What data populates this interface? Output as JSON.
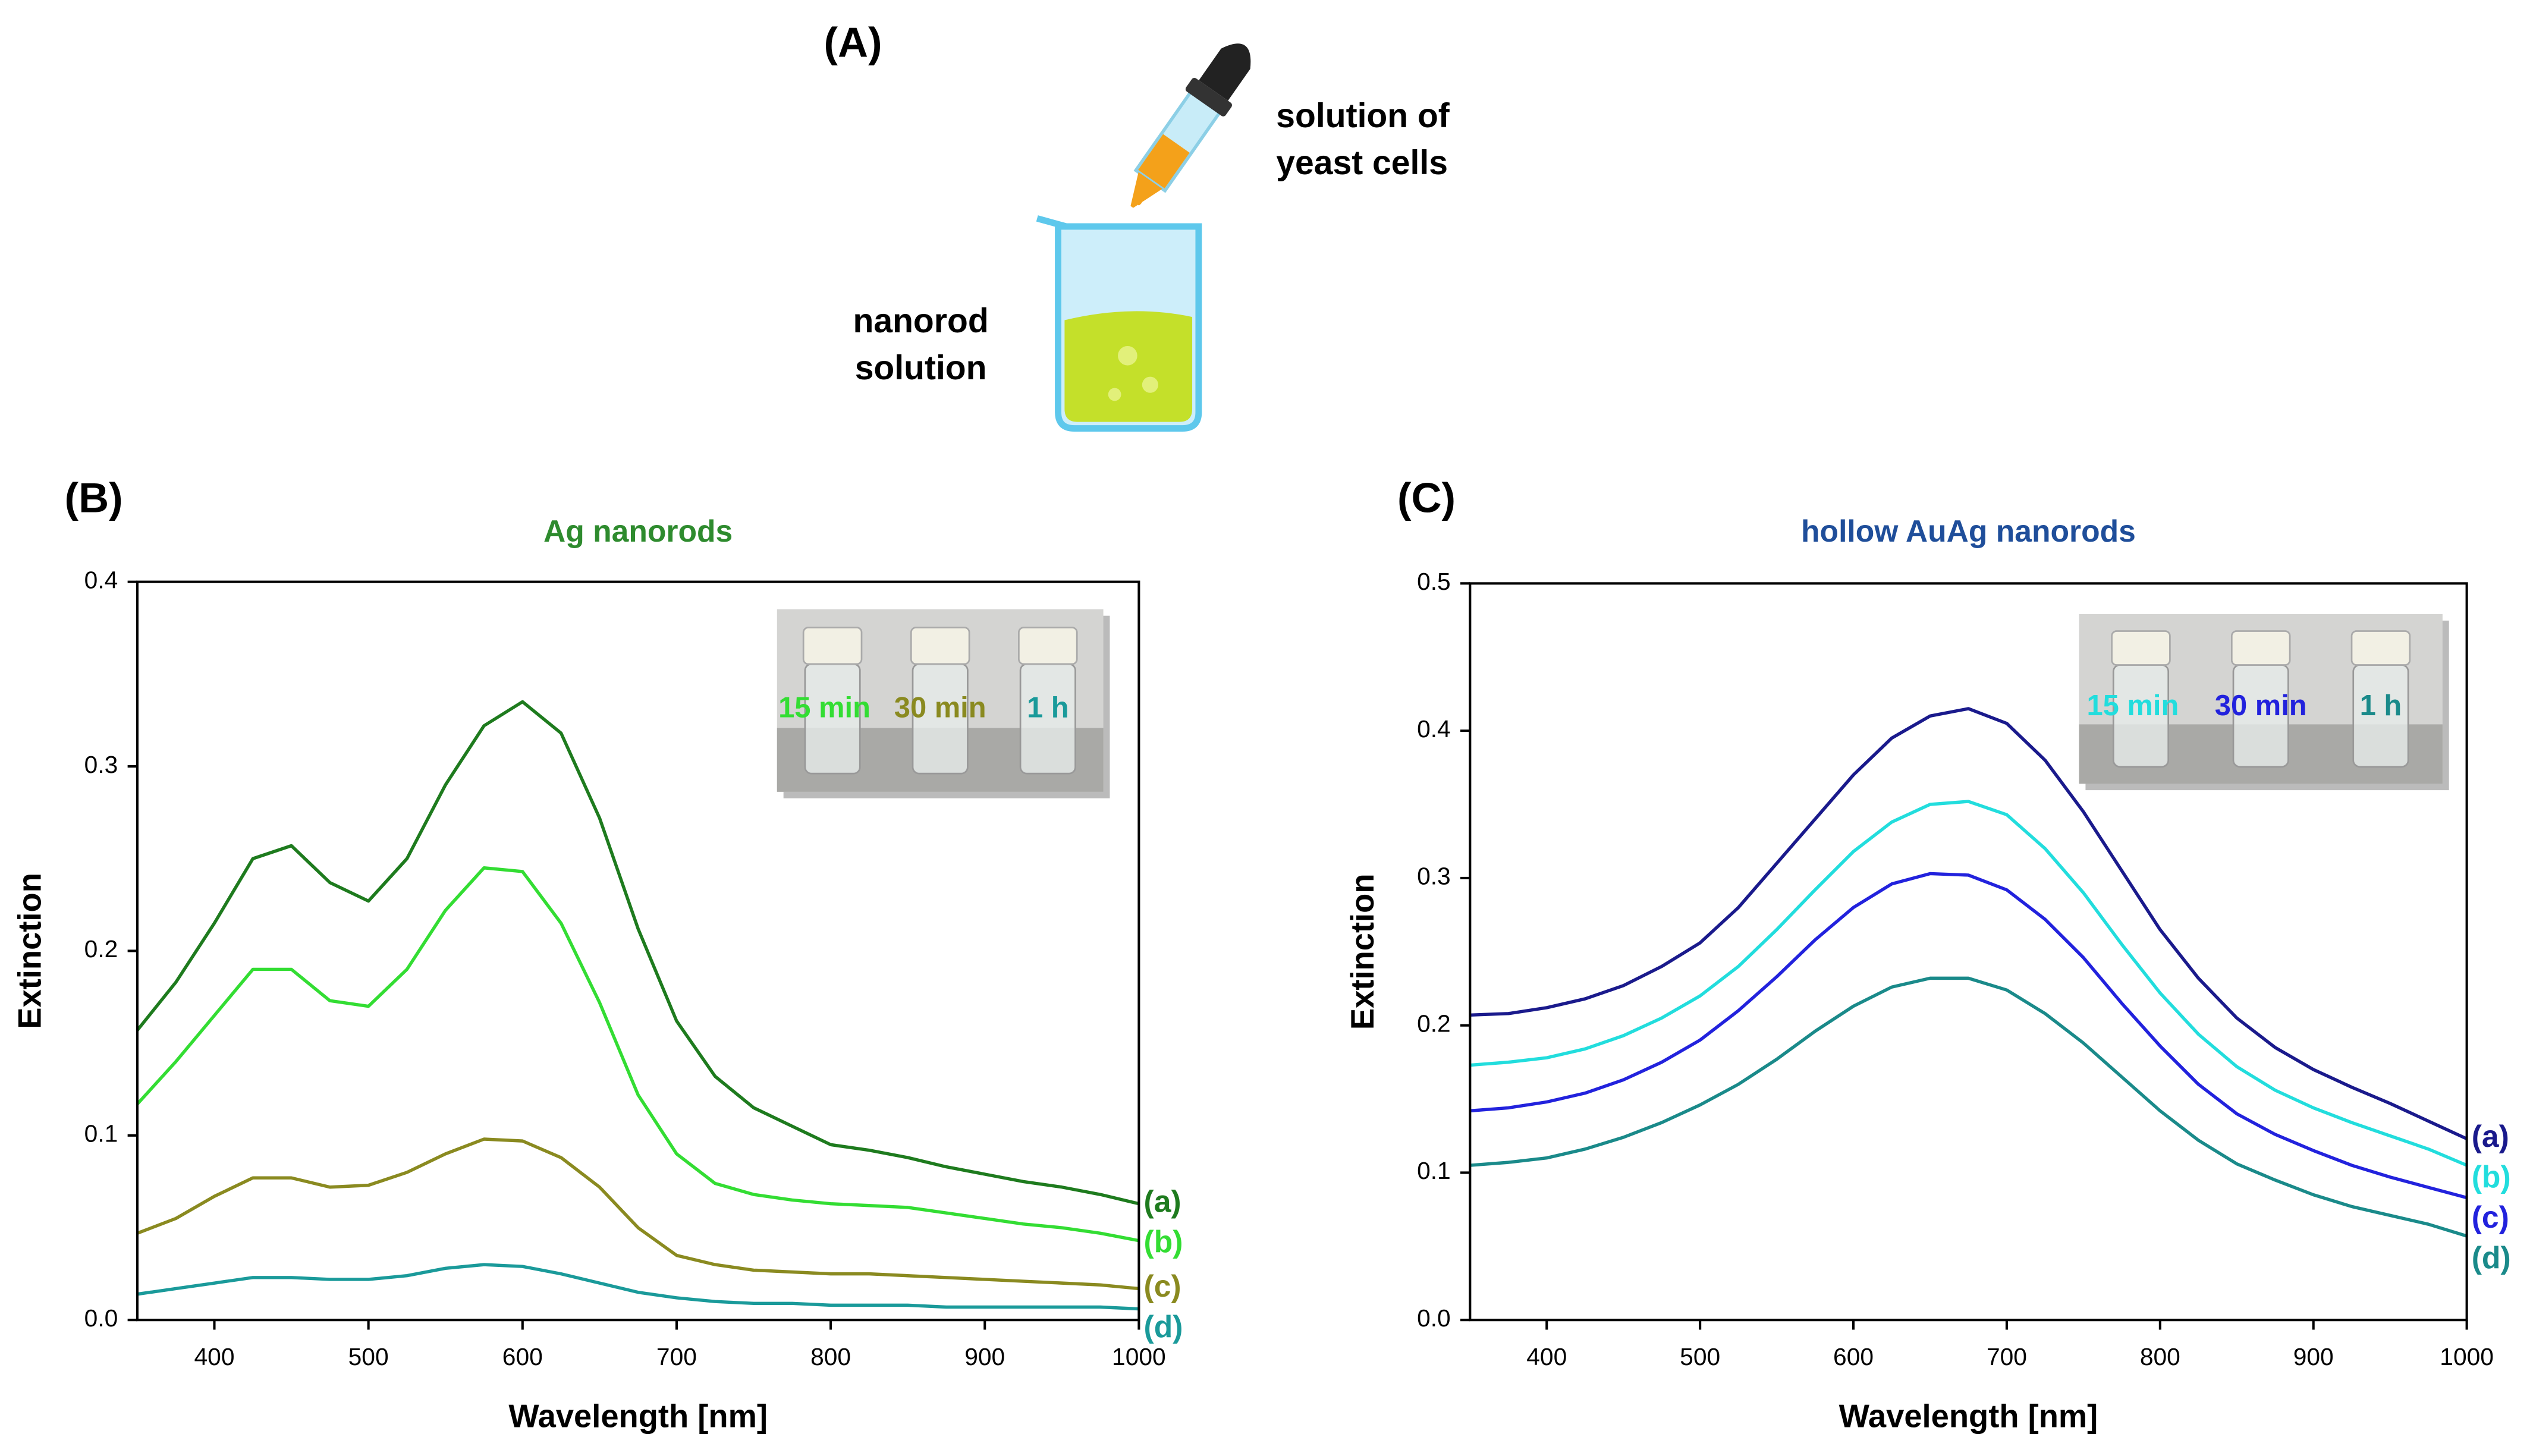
{
  "panel_a": {
    "label": "(A)",
    "dropper_label": [
      "solution of",
      "yeast cells"
    ],
    "beaker_label": [
      "nanorod",
      "solution"
    ]
  },
  "chart_data": [
    {
      "type": "line",
      "panel_label": "(B)",
      "title": "Ag nanorods",
      "title_color": "#2e8b2e",
      "xlabel": "Wavelength [nm]",
      "ylabel": "Extinction",
      "x": [
        350,
        375,
        400,
        425,
        450,
        475,
        500,
        525,
        550,
        575,
        600,
        625,
        650,
        675,
        700,
        725,
        750,
        775,
        800,
        825,
        850,
        875,
        900,
        925,
        950,
        975,
        1000
      ],
      "series": [
        {
          "name": "(a)",
          "color": "#1e7b1e",
          "values": [
            0.157,
            0.183,
            0.215,
            0.25,
            0.257,
            0.237,
            0.227,
            0.25,
            0.29,
            0.322,
            0.335,
            0.318,
            0.272,
            0.212,
            0.162,
            0.132,
            0.115,
            0.105,
            0.095,
            0.092,
            0.088,
            0.083,
            0.079,
            0.075,
            0.072,
            0.068,
            0.063
          ]
        },
        {
          "name": "(b)",
          "color": "#33dd33",
          "values": [
            0.117,
            0.14,
            0.165,
            0.19,
            0.19,
            0.173,
            0.17,
            0.19,
            0.222,
            0.245,
            0.243,
            0.215,
            0.172,
            0.122,
            0.09,
            0.074,
            0.068,
            0.065,
            0.063,
            0.062,
            0.061,
            0.058,
            0.055,
            0.052,
            0.05,
            0.047,
            0.043
          ]
        },
        {
          "name": "(c)",
          "color": "#8a8a20",
          "values": [
            0.047,
            0.055,
            0.067,
            0.077,
            0.077,
            0.072,
            0.073,
            0.08,
            0.09,
            0.098,
            0.097,
            0.088,
            0.072,
            0.05,
            0.035,
            0.03,
            0.027,
            0.026,
            0.025,
            0.025,
            0.024,
            0.023,
            0.022,
            0.021,
            0.02,
            0.019,
            0.017
          ]
        },
        {
          "name": "(d)",
          "color": "#1a9a9a",
          "values": [
            0.014,
            0.017,
            0.02,
            0.023,
            0.023,
            0.022,
            0.022,
            0.024,
            0.028,
            0.03,
            0.029,
            0.025,
            0.02,
            0.015,
            0.012,
            0.01,
            0.009,
            0.009,
            0.008,
            0.008,
            0.008,
            0.007,
            0.007,
            0.007,
            0.007,
            0.007,
            0.006
          ]
        }
      ],
      "xlim": [
        350,
        1000
      ],
      "xticks": [
        400,
        500,
        600,
        700,
        800,
        900,
        1000
      ],
      "ylim": [
        0,
        0.4
      ],
      "yticks": [
        {
          "value": 0,
          "label": "0.0"
        },
        0.1,
        0.2,
        0.3,
        0.4
      ],
      "inset_labels": [
        "15 min",
        "30 min",
        "1 h"
      ]
    },
    {
      "type": "line",
      "panel_label": "(C)",
      "title": "hollow AuAg nanorods",
      "title_color": "#1f4e9a",
      "xlabel": "Wavelength [nm]",
      "ylabel": "Extinction",
      "x": [
        350,
        375,
        400,
        425,
        450,
        475,
        500,
        525,
        550,
        575,
        600,
        625,
        650,
        675,
        700,
        725,
        750,
        775,
        800,
        825,
        850,
        875,
        900,
        925,
        950,
        975,
        1000
      ],
      "series": [
        {
          "name": "(a)",
          "color": "#1a1a8c",
          "values": [
            0.207,
            0.208,
            0.212,
            0.218,
            0.227,
            0.24,
            0.256,
            0.28,
            0.31,
            0.34,
            0.37,
            0.395,
            0.41,
            0.415,
            0.405,
            0.38,
            0.345,
            0.305,
            0.265,
            0.232,
            0.205,
            0.185,
            0.17,
            0.158,
            0.147,
            0.135,
            0.123
          ]
        },
        {
          "name": "(b)",
          "color": "#22dddd",
          "values": [
            0.173,
            0.175,
            0.178,
            0.184,
            0.193,
            0.205,
            0.22,
            0.24,
            0.265,
            0.292,
            0.318,
            0.338,
            0.35,
            0.352,
            0.343,
            0.32,
            0.29,
            0.255,
            0.222,
            0.194,
            0.172,
            0.156,
            0.144,
            0.134,
            0.125,
            0.116,
            0.105
          ]
        },
        {
          "name": "(c)",
          "color": "#2222dd",
          "values": [
            0.142,
            0.144,
            0.148,
            0.154,
            0.163,
            0.175,
            0.19,
            0.21,
            0.233,
            0.258,
            0.28,
            0.296,
            0.303,
            0.302,
            0.292,
            0.272,
            0.246,
            0.215,
            0.186,
            0.16,
            0.14,
            0.126,
            0.115,
            0.105,
            0.097,
            0.09,
            0.083
          ]
        },
        {
          "name": "(d)",
          "color": "#1a8a8a",
          "values": [
            0.105,
            0.107,
            0.11,
            0.116,
            0.124,
            0.134,
            0.146,
            0.16,
            0.177,
            0.196,
            0.213,
            0.226,
            0.232,
            0.232,
            0.224,
            0.208,
            0.188,
            0.165,
            0.142,
            0.122,
            0.106,
            0.095,
            0.085,
            0.077,
            0.071,
            0.065,
            0.057
          ]
        }
      ],
      "xlim": [
        350,
        1000
      ],
      "xticks": [
        400,
        500,
        600,
        700,
        800,
        900,
        1000
      ],
      "ylim": [
        0,
        0.5
      ],
      "yticks": [
        {
          "value": 0,
          "label": "0.0"
        },
        0.1,
        0.2,
        0.3,
        0.4,
        0.5
      ],
      "inset_labels": [
        "15 min",
        "30 min",
        "1 h"
      ]
    }
  ]
}
